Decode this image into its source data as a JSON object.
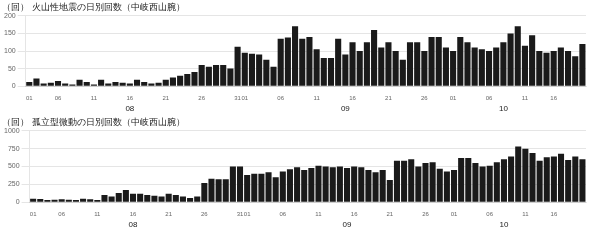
{
  "chart_data": [
    {
      "type": "bar",
      "title": "（回） 火山性地震の日別回数（中岐西山腕）",
      "categories": [
        "01",
        null,
        null,
        null,
        "06",
        null,
        null,
        null,
        null,
        "11",
        null,
        null,
        null,
        null,
        "16",
        null,
        null,
        null,
        null,
        "21",
        null,
        null,
        null,
        null,
        "26",
        null,
        null,
        null,
        null,
        "31",
        "01",
        null,
        null,
        null,
        null,
        "06",
        null,
        null,
        null,
        null,
        "11",
        null,
        null,
        null,
        null,
        "16",
        null,
        null,
        null,
        null,
        "21",
        null,
        null,
        null,
        null,
        "26",
        null,
        null,
        null,
        "01",
        null,
        null,
        null,
        null,
        "06",
        null,
        null,
        null,
        null,
        "11",
        null,
        null,
        null,
        "16",
        null,
        null,
        null,
        null
      ],
      "values": [
        12,
        22,
        8,
        10,
        15,
        8,
        5,
        18,
        12,
        5,
        18,
        8,
        12,
        10,
        8,
        18,
        12,
        8,
        10,
        18,
        25,
        30,
        35,
        40,
        60,
        55,
        60,
        60,
        50,
        112,
        95,
        92,
        90,
        75,
        55,
        135,
        138,
        170,
        135,
        140,
        105,
        80,
        80,
        135,
        90,
        125,
        100,
        125,
        160,
        110,
        125,
        100,
        75,
        125,
        125,
        100,
        140,
        140,
        110,
        100,
        140,
        125,
        110,
        105,
        100,
        110,
        125,
        150,
        170,
        115,
        145,
        100,
        95,
        100,
        110,
        100,
        85,
        120
      ],
      "color": "#1a1a1a",
      "ylim": [
        0,
        200
      ],
      "yticks": [
        0,
        50,
        100,
        150,
        200
      ],
      "grid": "y",
      "annotations": [
        {
          "text": "08",
          "x": 14
        },
        {
          "text": "09",
          "x": 44
        },
        {
          "text": "10",
          "x": 66
        }
      ]
    },
    {
      "type": "bar",
      "title": "（回） 孤立型微動の日別回数（中岐西山腕）",
      "categories": [
        "01",
        null,
        null,
        null,
        "06",
        null,
        null,
        null,
        null,
        "11",
        null,
        null,
        null,
        null,
        "16",
        null,
        null,
        null,
        null,
        "21",
        null,
        null,
        null,
        null,
        "26",
        null,
        null,
        null,
        null,
        "31",
        "01",
        null,
        null,
        null,
        null,
        "06",
        null,
        null,
        null,
        null,
        "11",
        null,
        null,
        null,
        null,
        "16",
        null,
        null,
        null,
        null,
        "21",
        null,
        null,
        null,
        null,
        "26",
        null,
        null,
        null,
        "01",
        null,
        null,
        null,
        null,
        "06",
        null,
        null,
        null,
        null,
        "11",
        null,
        null,
        null,
        "16",
        null,
        null,
        null,
        null
      ],
      "values": [
        50,
        45,
        30,
        35,
        40,
        35,
        30,
        50,
        40,
        30,
        100,
        80,
        130,
        170,
        120,
        120,
        100,
        90,
        80,
        120,
        100,
        80,
        60,
        80,
        270,
        330,
        320,
        320,
        500,
        500,
        380,
        400,
        400,
        420,
        350,
        430,
        460,
        490,
        450,
        480,
        510,
        500,
        490,
        500,
        480,
        500,
        490,
        450,
        420,
        450,
        310,
        580,
        580,
        600,
        500,
        550,
        560,
        470,
        430,
        450,
        620,
        620,
        550,
        500,
        510,
        560,
        600,
        640,
        780,
        750,
        690,
        580,
        630,
        640,
        680,
        590,
        640,
        600
      ],
      "color": "#1a1a1a",
      "ylim": [
        0,
        1000
      ],
      "yticks": [
        0,
        250,
        500,
        750,
        1000
      ],
      "grid": "y",
      "annotations": [
        {
          "text": "08",
          "x": 14
        },
        {
          "text": "09",
          "x": 44
        },
        {
          "text": "10",
          "x": 66
        }
      ]
    }
  ]
}
